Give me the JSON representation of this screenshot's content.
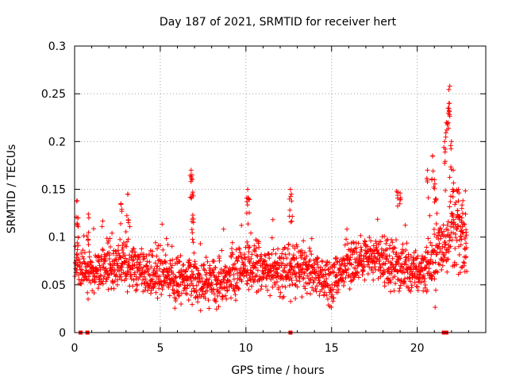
{
  "chart_data": {
    "type": "scatter",
    "title": "Day 187 of 2021, SRMTID for receiver hert",
    "xlabel": "GPS time / hours",
    "ylabel": "SRMTID / TECUs",
    "xlim": [
      0,
      24
    ],
    "ylim": [
      0,
      0.3
    ],
    "x_ticks": [
      0,
      5,
      10,
      15,
      20
    ],
    "y_ticks": [
      0,
      0.05,
      0.1,
      0.15,
      0.2,
      0.25,
      0.3
    ],
    "x_tick_labels": [
      "0",
      "5",
      "10",
      "15",
      "20"
    ],
    "y_tick_labels": [
      "0",
      "0.05",
      "0.1",
      "0.15",
      "0.2",
      "0.25",
      "0.3"
    ],
    "grid": true,
    "marker_color": "#ff0000",
    "series": [
      {
        "name": "SRMTID",
        "marker": "plus",
        "baseline_profile": [
          [
            0.0,
            0.075
          ],
          [
            1.0,
            0.062
          ],
          [
            2.0,
            0.068
          ],
          [
            3.0,
            0.072
          ],
          [
            4.0,
            0.064
          ],
          [
            5.0,
            0.06
          ],
          [
            6.0,
            0.058
          ],
          [
            7.0,
            0.058
          ],
          [
            8.0,
            0.05
          ],
          [
            9.0,
            0.056
          ],
          [
            10.0,
            0.07
          ],
          [
            11.0,
            0.068
          ],
          [
            12.0,
            0.062
          ],
          [
            13.0,
            0.066
          ],
          [
            14.0,
            0.062
          ],
          [
            15.0,
            0.055
          ],
          [
            16.0,
            0.072
          ],
          [
            17.0,
            0.08
          ],
          [
            18.0,
            0.072
          ],
          [
            19.0,
            0.066
          ],
          [
            20.0,
            0.063
          ],
          [
            21.0,
            0.075
          ],
          [
            22.0,
            0.11
          ],
          [
            23.0,
            0.09
          ]
        ],
        "highlights": [
          [
            0.15,
            0.138
          ],
          [
            0.2,
            0.12
          ],
          [
            0.8,
            0.124
          ],
          [
            2.7,
            0.135
          ],
          [
            3.1,
            0.145
          ],
          [
            6.8,
            0.17
          ],
          [
            6.85,
            0.165
          ],
          [
            6.9,
            0.147
          ],
          [
            6.9,
            0.123
          ],
          [
            10.1,
            0.15
          ],
          [
            10.15,
            0.14
          ],
          [
            12.6,
            0.15
          ],
          [
            12.65,
            0.145
          ],
          [
            18.8,
            0.148
          ],
          [
            19.0,
            0.146
          ],
          [
            20.6,
            0.17
          ],
          [
            20.9,
            0.185
          ],
          [
            21.0,
            0.16
          ],
          [
            21.1,
            0.14
          ],
          [
            21.6,
            0.2
          ],
          [
            21.7,
            0.22
          ],
          [
            21.8,
            0.235
          ],
          [
            21.85,
            0.24
          ],
          [
            21.9,
            0.258
          ],
          [
            22.0,
            0.2
          ],
          [
            22.1,
            0.17
          ],
          [
            22.4,
            0.15
          ],
          [
            22.6,
            0.13
          ],
          [
            22.8,
            0.1
          ]
        ]
      }
    ],
    "data_gaps": [
      0.35,
      0.75,
      12.6,
      21.55,
      21.7
    ]
  }
}
